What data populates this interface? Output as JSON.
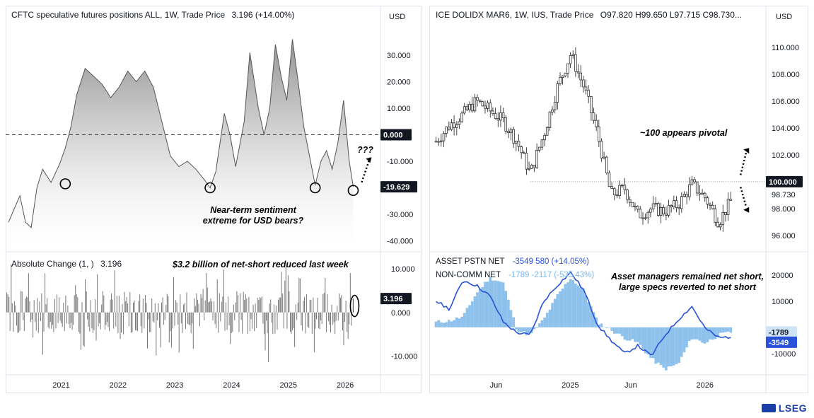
{
  "left_top": {
    "title": "CFTC speculative futures positions ALL, 1W, Trade Price",
    "last_value": "3.196 (+14.00%)",
    "axis_unit": "USD",
    "note_1": "Near-term sentiment",
    "note_2": "extreme for USD bears?",
    "note_q": "???",
    "current_tag": "-19.629",
    "zero_tag": "0.000"
  },
  "left_bottom": {
    "title": "Absolute Change (1, )",
    "last_value": "3.196",
    "note": "$3.2 billion of net-short reduced last week",
    "current_tag": "3.196"
  },
  "right_top": {
    "title": "ICE DOLIDX MAR6, 1W, IUS, Trade Price",
    "ohlc": "O97.820  H99.650  L97.715  C98.730...",
    "axis_unit": "USD",
    "note": "~100 appears pivotal",
    "tag_100": "100.000",
    "tag_close": "98.730"
  },
  "right_bottom": {
    "legend_1_name": "ASSET PSTN NET",
    "legend_1_vals": "-3549  580 (+14.05%)",
    "legend_2_name": "NON-COMM NET",
    "legend_2_vals": "-1789  -2117 (-535.43%)",
    "note_1": "Asset managers remained net short,",
    "note_2": "large specs reverted to net short",
    "tag_noncomm": "-1789",
    "tag_asset": "-3549"
  },
  "brand": "LSEG",
  "chart_data": [
    {
      "type": "area",
      "title": "CFTC speculative futures positions ALL, 1W, Trade Price",
      "x_ticks": [
        "2021",
        "2022",
        "2023",
        "2024",
        "2025",
        "2026"
      ],
      "y_ticks": [
        "30.000",
        "20.000",
        "10.000",
        "0.000",
        "-10.000",
        "-20.000",
        "-30.000",
        "-40.000"
      ],
      "ylim": [
        -42,
        38
      ],
      "series": [
        {
          "values": [
            {
              "x": 2020.05,
              "y": -33
            },
            {
              "x": 2020.15,
              "y": -28
            },
            {
              "x": 2020.25,
              "y": -23
            },
            {
              "x": 2020.35,
              "y": -33
            },
            {
              "x": 2020.45,
              "y": -35
            },
            {
              "x": 2020.55,
              "y": -20
            },
            {
              "x": 2020.65,
              "y": -13
            },
            {
              "x": 2020.8,
              "y": -18
            },
            {
              "x": 2020.95,
              "y": -11
            },
            {
              "x": 2021.05,
              "y": -5
            },
            {
              "x": 2021.15,
              "y": 3
            },
            {
              "x": 2021.25,
              "y": 15
            },
            {
              "x": 2021.4,
              "y": 25
            },
            {
              "x": 2021.55,
              "y": 22
            },
            {
              "x": 2021.7,
              "y": 19
            },
            {
              "x": 2021.85,
              "y": 14
            },
            {
              "x": 2022.0,
              "y": 18
            },
            {
              "x": 2022.15,
              "y": 24
            },
            {
              "x": 2022.3,
              "y": 20
            },
            {
              "x": 2022.45,
              "y": 24
            },
            {
              "x": 2022.6,
              "y": 18
            },
            {
              "x": 2022.75,
              "y": 5
            },
            {
              "x": 2022.9,
              "y": -8
            },
            {
              "x": 2023.05,
              "y": -12
            },
            {
              "x": 2023.2,
              "y": -10
            },
            {
              "x": 2023.35,
              "y": -13
            },
            {
              "x": 2023.5,
              "y": -17
            },
            {
              "x": 2023.6,
              "y": -20
            },
            {
              "x": 2023.7,
              "y": -14
            },
            {
              "x": 2023.85,
              "y": 8
            },
            {
              "x": 2023.95,
              "y": 0
            },
            {
              "x": 2024.05,
              "y": -12
            },
            {
              "x": 2024.2,
              "y": 5
            },
            {
              "x": 2024.3,
              "y": 31
            },
            {
              "x": 2024.45,
              "y": 10
            },
            {
              "x": 2024.55,
              "y": 0
            },
            {
              "x": 2024.65,
              "y": 10
            },
            {
              "x": 2024.75,
              "y": 34
            },
            {
              "x": 2024.85,
              "y": 22
            },
            {
              "x": 2024.95,
              "y": 13
            },
            {
              "x": 2025.05,
              "y": 36
            },
            {
              "x": 2025.15,
              "y": 20
            },
            {
              "x": 2025.25,
              "y": 3
            },
            {
              "x": 2025.35,
              "y": -8
            },
            {
              "x": 2025.45,
              "y": -19
            },
            {
              "x": 2025.55,
              "y": -10
            },
            {
              "x": 2025.65,
              "y": -6
            },
            {
              "x": 2025.75,
              "y": -13
            },
            {
              "x": 2025.85,
              "y": -3
            },
            {
              "x": 2025.95,
              "y": 13
            },
            {
              "x": 2026.05,
              "y": -10
            },
            {
              "x": 2026.12,
              "y": -19.629
            }
          ]
        }
      ]
    },
    {
      "type": "bar",
      "title": "Absolute Change (1, )",
      "x_ticks": [
        "2021",
        "2022",
        "2023",
        "2024",
        "2025",
        "2026"
      ],
      "y_ticks": [
        "10.000",
        "0.000",
        "-10.000"
      ],
      "ylim": [
        -13,
        11
      ],
      "last_value": 3.196
    },
    {
      "type": "line",
      "title": "ICE DOLIDX MAR6, 1W, IUS, Trade Price",
      "x_ticks": [
        "Jun",
        "2025",
        "Jun",
        "2026"
      ],
      "y_ticks": [
        "110.000",
        "108.000",
        "106.000",
        "104.000",
        "102.000",
        "100.000",
        "98.000",
        "96.000"
      ],
      "ylim": [
        95.2,
        111
      ],
      "series": [
        {
          "values": [
            {
              "x": 2024.0,
              "y": 103.0
            },
            {
              "x": 2024.1,
              "y": 104.2
            },
            {
              "x": 2024.2,
              "y": 105.0
            },
            {
              "x": 2024.3,
              "y": 106.0
            },
            {
              "x": 2024.4,
              "y": 105.3
            },
            {
              "x": 2024.5,
              "y": 104.5
            },
            {
              "x": 2024.6,
              "y": 103.0
            },
            {
              "x": 2024.7,
              "y": 100.6
            },
            {
              "x": 2024.8,
              "y": 103.5
            },
            {
              "x": 2024.9,
              "y": 107.0
            },
            {
              "x": 2025.0,
              "y": 109.5
            },
            {
              "x": 2025.1,
              "y": 107.0
            },
            {
              "x": 2025.2,
              "y": 103.5
            },
            {
              "x": 2025.3,
              "y": 99.0
            },
            {
              "x": 2025.4,
              "y": 99.5
            },
            {
              "x": 2025.5,
              "y": 97.5
            },
            {
              "x": 2025.6,
              "y": 98.0
            },
            {
              "x": 2025.7,
              "y": 97.8
            },
            {
              "x": 2025.8,
              "y": 98.3
            },
            {
              "x": 2025.9,
              "y": 99.8
            },
            {
              "x": 2026.0,
              "y": 98.8
            },
            {
              "x": 2026.1,
              "y": 97.0
            },
            {
              "x": 2026.2,
              "y": 98.73
            }
          ]
        }
      ]
    },
    {
      "type": "bar",
      "title": "ASSET PSTN NET / NON-COMM NET",
      "x_ticks": [
        "Jun",
        "2025",
        "Jun",
        "2026"
      ],
      "y_ticks": [
        "20000",
        "10000",
        "-10000"
      ],
      "ylim": [
        -16000,
        24000
      ],
      "series": [
        {
          "name": "NON-COMM NET",
          "values": [
            {
              "x": 2024.0,
              "y": 2000
            },
            {
              "x": 2024.1,
              "y": 2500
            },
            {
              "x": 2024.2,
              "y": 4000
            },
            {
              "x": 2024.3,
              "y": 13000
            },
            {
              "x": 2024.4,
              "y": 19000
            },
            {
              "x": 2024.5,
              "y": 17000
            },
            {
              "x": 2024.6,
              "y": -1000
            },
            {
              "x": 2024.7,
              "y": -3000
            },
            {
              "x": 2024.8,
              "y": 3000
            },
            {
              "x": 2024.9,
              "y": 12000
            },
            {
              "x": 2025.0,
              "y": 19000
            },
            {
              "x": 2025.1,
              "y": 14000
            },
            {
              "x": 2025.2,
              "y": 2000
            },
            {
              "x": 2025.3,
              "y": -1000
            },
            {
              "x": 2025.4,
              "y": -4000
            },
            {
              "x": 2025.5,
              "y": -6000
            },
            {
              "x": 2025.6,
              "y": -12000
            },
            {
              "x": 2025.7,
              "y": -16000
            },
            {
              "x": 2025.8,
              "y": -14000
            },
            {
              "x": 2025.9,
              "y": -4000
            },
            {
              "x": 2026.0,
              "y": -6000
            },
            {
              "x": 2026.1,
              "y": -3000
            },
            {
              "x": 2026.2,
              "y": -1789
            }
          ]
        },
        {
          "name": "ASSET PSTN NET",
          "values": [
            {
              "x": 2024.0,
              "y": 10000
            },
            {
              "x": 2024.1,
              "y": 7000
            },
            {
              "x": 2024.2,
              "y": 18000
            },
            {
              "x": 2024.3,
              "y": 16000
            },
            {
              "x": 2024.4,
              "y": 12000
            },
            {
              "x": 2024.5,
              "y": 2000
            },
            {
              "x": 2024.6,
              "y": -2000
            },
            {
              "x": 2024.7,
              "y": -3000
            },
            {
              "x": 2024.8,
              "y": 10000
            },
            {
              "x": 2024.9,
              "y": 16000
            },
            {
              "x": 2025.0,
              "y": 21000
            },
            {
              "x": 2025.1,
              "y": 14000
            },
            {
              "x": 2025.2,
              "y": 1000
            },
            {
              "x": 2025.3,
              "y": -5000
            },
            {
              "x": 2025.4,
              "y": -10000
            },
            {
              "x": 2025.5,
              "y": -7000
            },
            {
              "x": 2025.6,
              "y": -11000
            },
            {
              "x": 2025.7,
              "y": -3000
            },
            {
              "x": 2025.8,
              "y": 3000
            },
            {
              "x": 2025.9,
              "y": 8000
            },
            {
              "x": 2026.0,
              "y": -500
            },
            {
              "x": 2026.1,
              "y": -4000
            },
            {
              "x": 2026.2,
              "y": -3549
            }
          ]
        }
      ]
    }
  ]
}
